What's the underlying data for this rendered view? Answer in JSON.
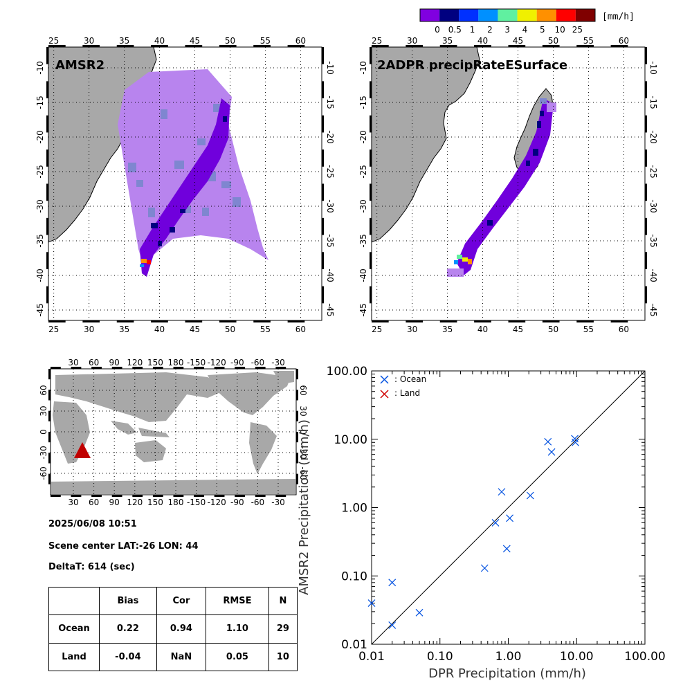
{
  "colorbar": {
    "unit": "[mm/h]",
    "labels": [
      "0",
      "0.5",
      "1",
      "2",
      "3",
      "4",
      "5",
      "10",
      "25"
    ],
    "colors": [
      "#8000e0",
      "#000080",
      "#0030ff",
      "#0090ff",
      "#60f0a0",
      "#f0f000",
      "#ff9000",
      "#ff0000",
      "#800000"
    ]
  },
  "colors": {
    "land": "#a8a8a8",
    "swath_light": "#b884ee",
    "swath_grey": "#7f86d0",
    "swath_dark": "#7000dc",
    "swath_navy": "#000080",
    "marker": "#c00000",
    "ocean_marker": "#0050e0",
    "land_marker": "#d00000"
  },
  "map_left": {
    "title": "AMSR2",
    "lon_ticks": [
      "25",
      "30",
      "35",
      "40",
      "45",
      "50",
      "55",
      "60"
    ],
    "lat_ticks": [
      "-10",
      "-15",
      "-20",
      "-25",
      "-30",
      "-35",
      "-40",
      "-45"
    ]
  },
  "map_right": {
    "title": "2ADPR precipRateESurface",
    "lon_ticks": [
      "25",
      "30",
      "35",
      "40",
      "45",
      "50",
      "55",
      "60"
    ],
    "lat_ticks": [
      "-10",
      "-15",
      "-20",
      "-25",
      "-30",
      "-35",
      "-40",
      "-45"
    ]
  },
  "world_map": {
    "lon_ticks": [
      "30",
      "60",
      "90",
      "120",
      "150",
      "180",
      "-150",
      "-120",
      "-90",
      "-60",
      "-30"
    ],
    "lat_ticks": [
      "60",
      "30",
      "0",
      "-30",
      "-60"
    ]
  },
  "info": {
    "datetime": "2025/06/08 10:51",
    "scene_center": "Scene center LAT:-26   LON:  44",
    "delta_t": "DeltaT:  614 (sec)"
  },
  "stats_table": {
    "headers": [
      "",
      "Bias",
      "Cor",
      "RMSE",
      "N"
    ],
    "rows": [
      [
        "Ocean",
        "0.22",
        "0.94",
        "1.10",
        "29"
      ],
      [
        "Land",
        "-0.04",
        "NaN",
        "0.05",
        "10"
      ]
    ]
  },
  "chart_data": {
    "type": "scatter",
    "title": "",
    "xlabel": "DPR Precipitation (mm/h)",
    "ylabel": "AMSR2 Precipitation (mm/h)",
    "xscale": "log",
    "yscale": "log",
    "xlim": [
      0.01,
      100
    ],
    "ylim": [
      0.01,
      100
    ],
    "x_tick_labels": [
      "0.01",
      "0.10",
      "1.00",
      "10.00",
      "100.00"
    ],
    "y_tick_labels": [
      "0.01",
      "0.10",
      "1.00",
      "10.00",
      "100.00"
    ],
    "reference_line": "y = x",
    "legend_position": "top-left",
    "series": [
      {
        "name": ": Ocean",
        "color": "#0050e0",
        "points": [
          [
            0.01,
            0.04
          ],
          [
            0.02,
            0.08
          ],
          [
            0.02,
            0.019
          ],
          [
            0.05,
            0.029
          ],
          [
            0.45,
            0.13
          ],
          [
            0.65,
            0.6
          ],
          [
            0.8,
            1.7
          ],
          [
            0.95,
            0.25
          ],
          [
            1.05,
            0.7
          ],
          [
            2.1,
            1.5
          ],
          [
            3.8,
            9.2
          ],
          [
            4.3,
            6.5
          ],
          [
            9.4,
            10.2
          ],
          [
            9.6,
            9.0
          ]
        ]
      },
      {
        "name": ": Land",
        "color": "#d00000",
        "points": []
      }
    ]
  }
}
